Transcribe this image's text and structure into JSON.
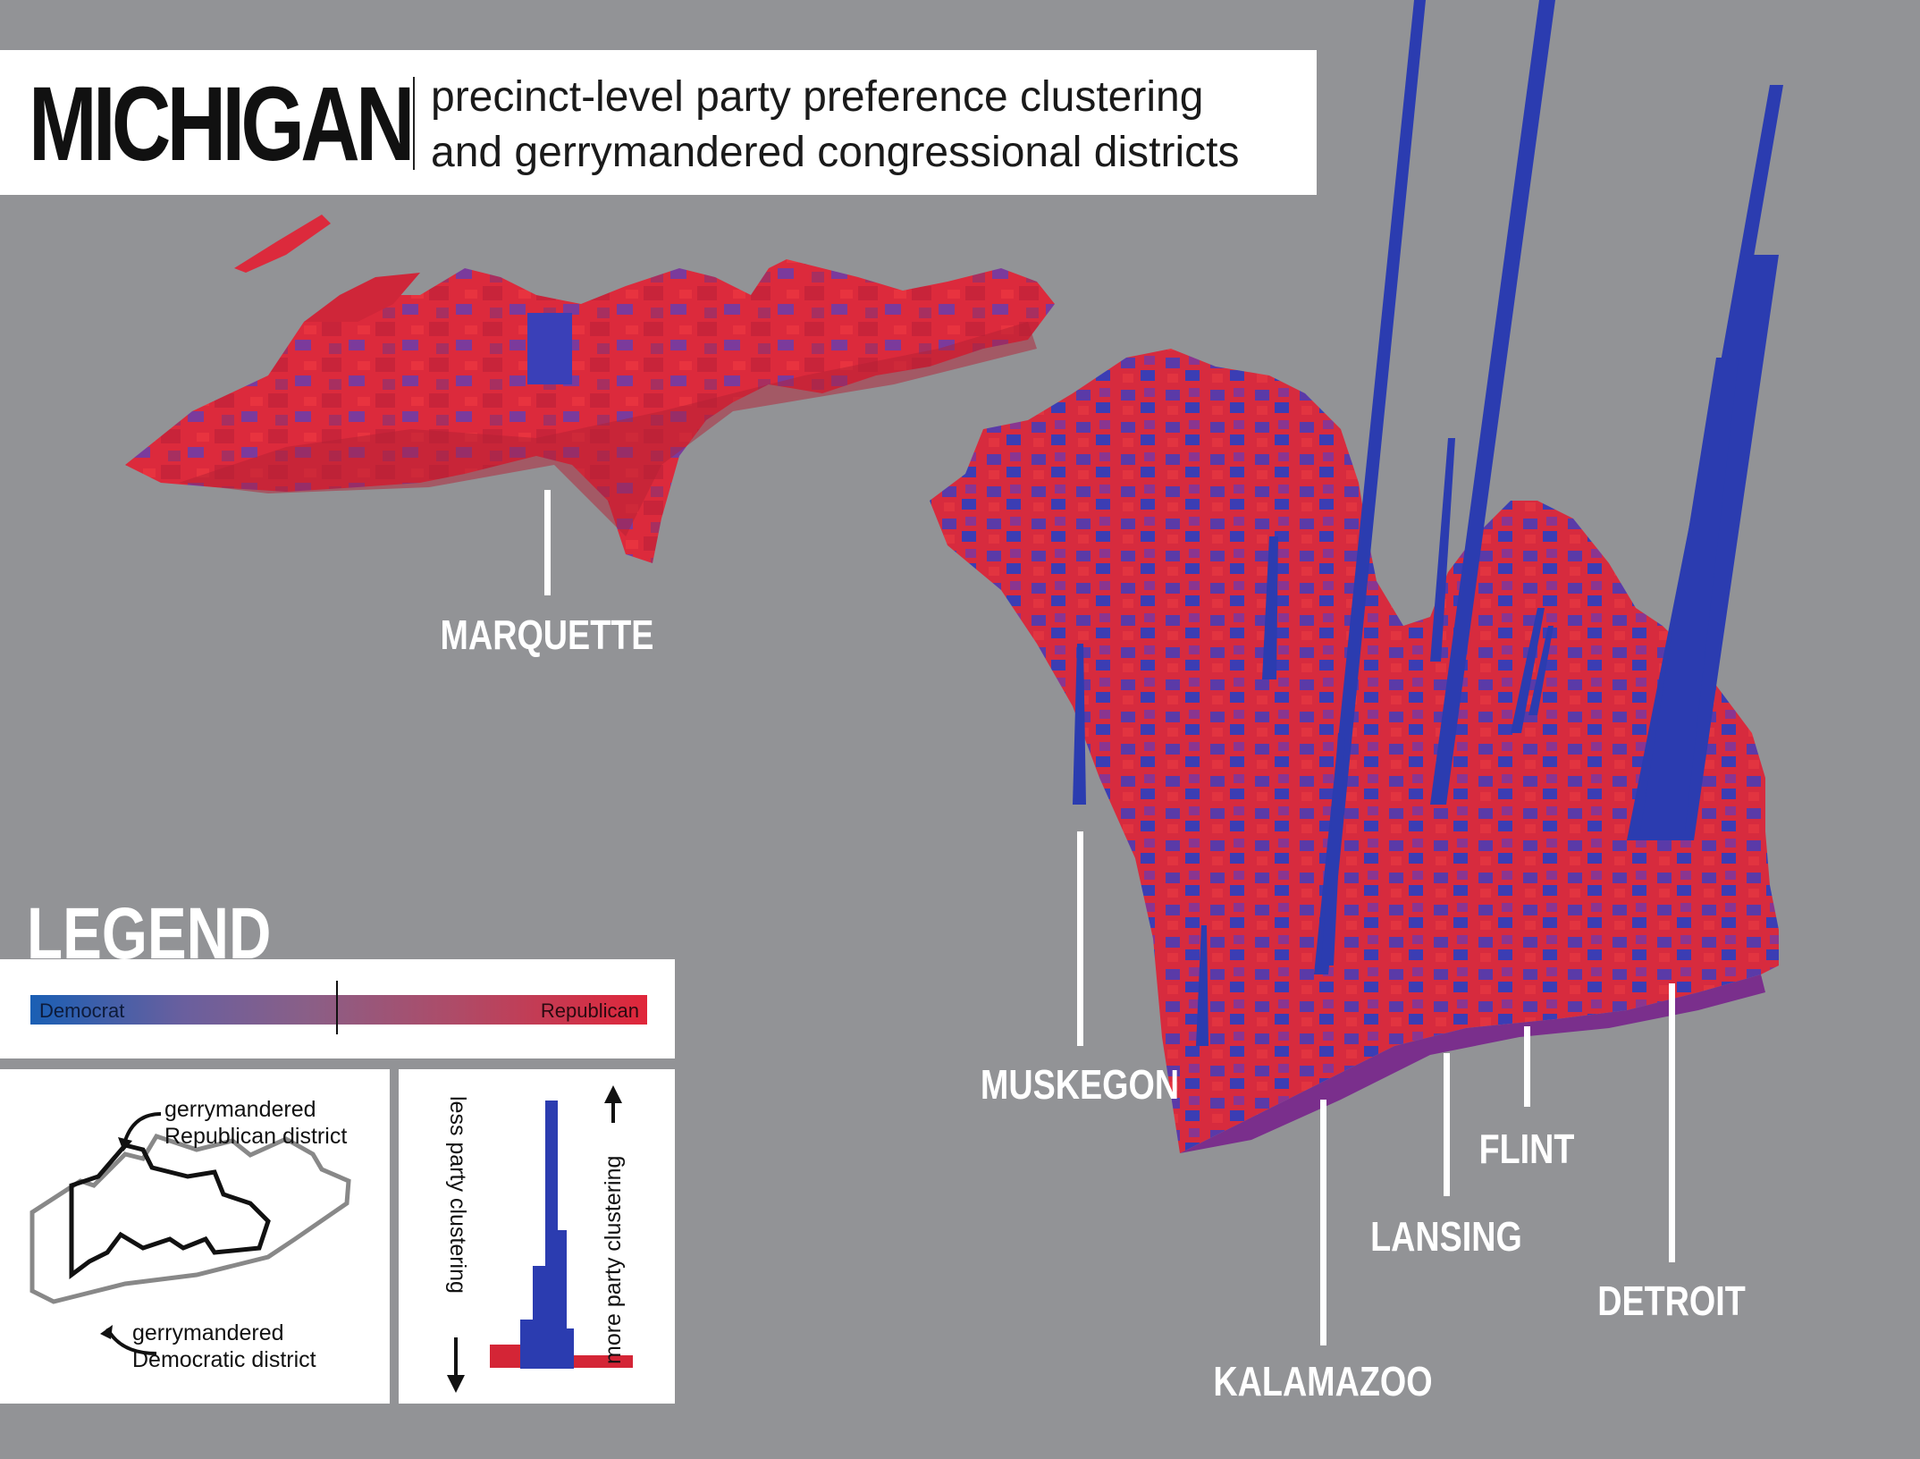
{
  "header": {
    "title": "MICHIGAN",
    "subtitle_line1": "precinct-level party preference clustering",
    "subtitle_line2": "and gerrymandered congressional districts"
  },
  "cities": [
    {
      "name": "MARQUETTE"
    },
    {
      "name": "MUSKEGON"
    },
    {
      "name": "KALAMAZOO"
    },
    {
      "name": "LANSING"
    },
    {
      "name": "FLINT"
    },
    {
      "name": "DETROIT"
    }
  ],
  "legend": {
    "title": "LEGEND",
    "democrat_label": "Democrat",
    "republican_label": "Republican",
    "rep_district_line1": "gerrymandered",
    "rep_district_line2": "Republican district",
    "dem_district_line1": "gerrymandered",
    "dem_district_line2": "Democratic district",
    "less_clustering": "less  party clustering",
    "more_clustering": "more party clustering"
  },
  "colors": {
    "democrat": "#2a3fb0",
    "republican": "#e0263a",
    "mixed": "#7a3fa0",
    "background": "#929396"
  }
}
